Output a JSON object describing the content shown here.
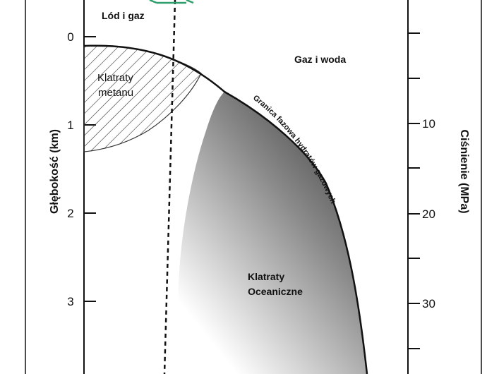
{
  "left_axis": {
    "label": "Głębokość (km)",
    "ticks": [
      "0",
      "1",
      "2",
      "3"
    ]
  },
  "right_axis": {
    "label": "Ciśnienie (MPa)",
    "ticks": [
      "10",
      "20",
      "30"
    ]
  },
  "regions": {
    "ice_gas": "Lód i gaz",
    "gas_water": "Gaz i woda",
    "methane_clathrates_line1": "Klatraty",
    "methane_clathrates_line2": "metanu",
    "oceanic_clathrates_line1": "Klatraty",
    "oceanic_clathrates_line2": "Oceaniczne"
  },
  "curve_label": "Granica fazowa hydratów gazowych",
  "colors": {
    "frame": "#111111",
    "shading_dark": "#3a3a3a",
    "shading_light": "#ffffff",
    "arrow_green": "#2e9e6a"
  }
}
